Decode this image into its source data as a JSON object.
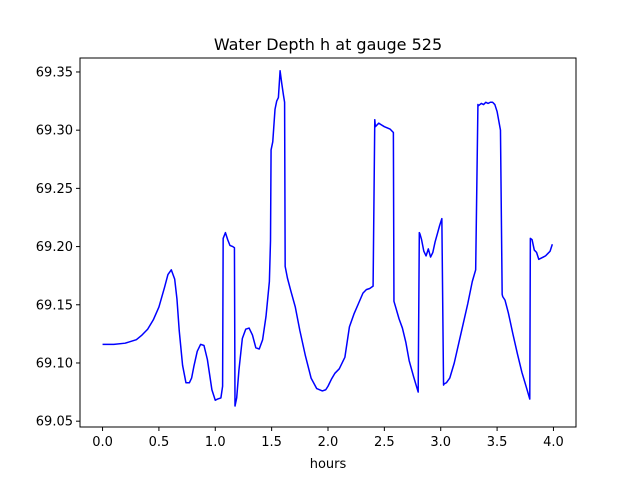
{
  "chart_data": {
    "type": "line",
    "title": "Water Depth h at gauge 525",
    "xlabel": "hours",
    "ylabel": "",
    "xlim": [
      -0.2,
      4.2
    ],
    "ylim": [
      69.045,
      69.362
    ],
    "xticks": [
      0.0,
      0.5,
      1.0,
      1.5,
      2.0,
      2.5,
      3.0,
      3.5,
      4.0
    ],
    "xtick_labels": [
      "0.0",
      "0.5",
      "1.0",
      "1.5",
      "2.0",
      "2.5",
      "3.0",
      "3.5",
      "4.0"
    ],
    "yticks": [
      69.05,
      69.1,
      69.15,
      69.2,
      69.25,
      69.3,
      69.35
    ],
    "ytick_labels": [
      "69.05",
      "69.10",
      "69.15",
      "69.20",
      "69.25",
      "69.30",
      "69.35"
    ],
    "grid": false,
    "legend": "none",
    "series": [
      {
        "color": "#0000ff",
        "x": [
          0.0,
          0.1,
          0.2,
          0.3,
          0.35,
          0.4,
          0.45,
          0.5,
          0.55,
          0.58,
          0.61,
          0.64,
          0.66,
          0.68,
          0.71,
          0.74,
          0.77,
          0.79,
          0.81,
          0.84,
          0.87,
          0.9,
          0.93,
          0.95,
          0.97,
          1.0,
          1.02,
          1.05,
          1.065,
          1.07,
          1.09,
          1.11,
          1.13,
          1.155,
          1.17,
          1.175,
          1.19,
          1.21,
          1.24,
          1.27,
          1.3,
          1.33,
          1.36,
          1.39,
          1.42,
          1.45,
          1.48,
          1.49,
          1.495,
          1.51,
          1.53,
          1.545,
          1.56,
          1.575,
          1.59,
          1.605,
          1.615,
          1.62,
          1.64,
          1.67,
          1.71,
          1.75,
          1.8,
          1.85,
          1.9,
          1.95,
          1.98,
          2.0,
          2.03,
          2.06,
          2.1,
          2.15,
          2.19,
          2.23,
          2.27,
          2.31,
          2.34,
          2.37,
          2.4,
          2.415,
          2.42,
          2.45,
          2.5,
          2.55,
          2.58,
          2.585,
          2.6,
          2.63,
          2.66,
          2.69,
          2.72,
          2.76,
          2.8,
          2.81,
          2.815,
          2.83,
          2.85,
          2.87,
          2.89,
          2.91,
          2.93,
          2.95,
          2.97,
          2.99,
          3.01,
          3.025,
          3.03,
          3.05,
          3.08,
          3.12,
          3.16,
          3.2,
          3.24,
          3.28,
          3.31,
          3.33,
          3.335,
          3.36,
          3.38,
          3.4,
          3.42,
          3.44,
          3.46,
          3.48,
          3.5,
          3.53,
          3.545,
          3.55,
          3.57,
          3.6,
          3.64,
          3.68,
          3.72,
          3.76,
          3.79,
          3.795,
          3.81,
          3.83,
          3.85,
          3.87,
          3.89,
          3.91,
          3.93,
          3.95,
          3.97,
          3.99
        ],
        "y": [
          69.116,
          69.116,
          69.117,
          69.12,
          69.124,
          69.129,
          69.137,
          69.148,
          69.165,
          69.176,
          69.18,
          69.172,
          69.155,
          69.128,
          69.098,
          69.083,
          69.083,
          69.087,
          69.097,
          69.11,
          69.116,
          69.115,
          69.103,
          69.09,
          69.077,
          69.068,
          69.069,
          69.07,
          69.08,
          69.207,
          69.212,
          69.206,
          69.201,
          69.2,
          69.199,
          69.063,
          69.07,
          69.094,
          69.121,
          69.129,
          69.13,
          69.124,
          69.113,
          69.112,
          69.12,
          69.14,
          69.17,
          69.205,
          69.283,
          69.29,
          69.318,
          69.325,
          69.328,
          69.351,
          69.34,
          69.33,
          69.324,
          69.183,
          69.173,
          69.162,
          69.148,
          69.128,
          69.106,
          69.087,
          69.078,
          69.076,
          69.077,
          69.08,
          69.086,
          69.091,
          69.095,
          69.105,
          69.131,
          69.142,
          69.151,
          69.16,
          69.163,
          69.164,
          69.166,
          69.309,
          69.303,
          69.306,
          69.303,
          69.301,
          69.298,
          69.153,
          69.148,
          69.138,
          69.13,
          69.118,
          69.102,
          69.088,
          69.075,
          69.212,
          69.211,
          69.206,
          69.196,
          69.192,
          69.198,
          69.191,
          69.195,
          69.204,
          69.211,
          69.218,
          69.224,
          69.081,
          69.082,
          69.083,
          69.087,
          69.1,
          69.117,
          69.134,
          69.151,
          69.17,
          69.18,
          69.322,
          69.321,
          69.323,
          69.322,
          69.324,
          69.323,
          69.324,
          69.324,
          69.322,
          69.316,
          69.3,
          69.159,
          69.157,
          69.154,
          69.143,
          69.125,
          69.108,
          69.092,
          69.079,
          69.069,
          69.207,
          69.206,
          69.197,
          69.195,
          69.189,
          69.19,
          69.191,
          69.192,
          69.194,
          69.196,
          69.202
        ]
      }
    ]
  }
}
